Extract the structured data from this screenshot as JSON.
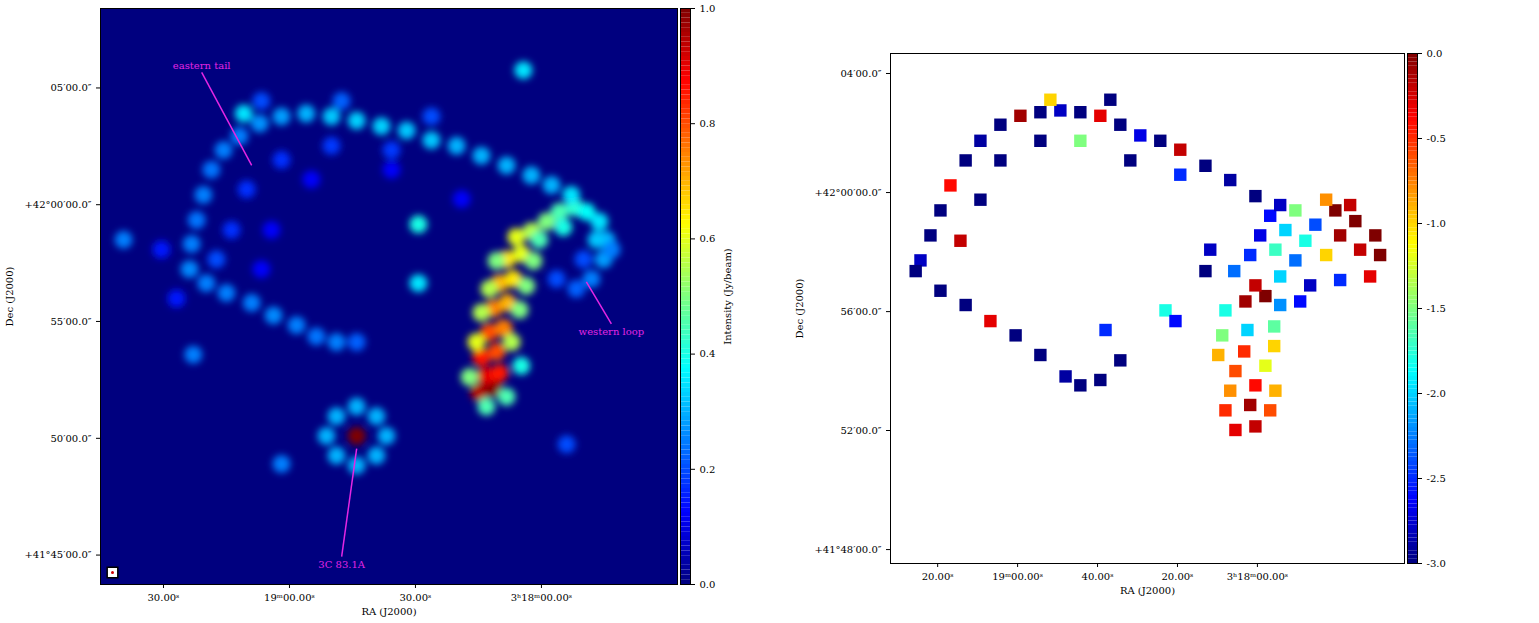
{
  "chart_data": [
    {
      "type": "heatmap",
      "xlabel": "RA (J2000)",
      "ylabel": "Dec (J2000)",
      "xlim": [
        11985,
        11847.6
      ],
      "ylim": [
        41.729,
        42.14
      ],
      "xticks": [
        {
          "value": 11970,
          "label": "30.00ˢ"
        },
        {
          "value": 11940,
          "label": "19ᵐ00.00ˢ"
        },
        {
          "value": 11910,
          "label": "30.00ˢ"
        },
        {
          "value": 11880,
          "label": "3ʰ18ᵐ00.00ˢ"
        }
      ],
      "yticks": [
        {
          "value": 41.75,
          "label": "+41°45′00.0″"
        },
        {
          "value": 41.8333,
          "label": "50′00.0″"
        },
        {
          "value": 41.9167,
          "label": "55′00.0″"
        },
        {
          "value": 42.0,
          "label": "+42°00′00.0″"
        },
        {
          "value": 42.0833,
          "label": "05′00.0″"
        }
      ],
      "colorbar": {
        "label": "Intensity (Jy/beam)",
        "lim": [
          0,
          1
        ],
        "ticks": [
          {
            "value": 0,
            "label": "0.0"
          },
          {
            "value": 0.2,
            "label": "0.2"
          },
          {
            "value": 0.4,
            "label": "0.4"
          },
          {
            "value": 0.6,
            "label": "0.6"
          },
          {
            "value": 0.8,
            "label": "0.8"
          },
          {
            "value": 1,
            "label": "1.0"
          }
        ]
      },
      "annotations": [
        {
          "text": "eastern tail",
          "x": 11949.0,
          "y": 42.028
        },
        {
          "text": "western loop",
          "x": 11869.3,
          "y": 41.945
        },
        {
          "text": "3C 83.1A",
          "x": 11924.0,
          "y": 41.826
        }
      ],
      "points": [
        [
          11894.8,
          41.866,
          0.95
        ],
        [
          11891.4,
          41.869,
          1.0
        ],
        [
          11893.1,
          41.878,
          0.9
        ],
        [
          11890.0,
          41.88,
          0.85
        ],
        [
          11894.3,
          41.891,
          0.85
        ],
        [
          11890.7,
          41.895,
          0.8
        ],
        [
          11892.4,
          41.909,
          0.8
        ],
        [
          11889.0,
          41.912,
          0.75
        ],
        [
          11895.5,
          41.902,
          0.6
        ],
        [
          11887.1,
          41.902,
          0.55
        ],
        [
          11891.4,
          41.926,
          0.75
        ],
        [
          11888.1,
          41.93,
          0.7
        ],
        [
          11894.3,
          41.923,
          0.55
        ],
        [
          11885.2,
          41.925,
          0.5
        ],
        [
          11890.0,
          41.944,
          0.7
        ],
        [
          11886.7,
          41.947,
          0.65
        ],
        [
          11892.4,
          41.94,
          0.55
        ],
        [
          11883.6,
          41.942,
          0.5
        ],
        [
          11888.3,
          41.961,
          0.65
        ],
        [
          11884.8,
          41.965,
          0.6
        ],
        [
          11890.7,
          41.96,
          0.5
        ],
        [
          11881.9,
          41.96,
          0.5
        ],
        [
          11886.0,
          41.977,
          0.6
        ],
        [
          11882.4,
          41.981,
          0.55
        ],
        [
          11878.8,
          41.988,
          0.5
        ],
        [
          11880.5,
          41.975,
          0.45
        ],
        [
          11875.7,
          41.995,
          0.45
        ],
        [
          11872.1,
          41.998,
          0.42
        ],
        [
          11874.8,
          41.984,
          0.4
        ],
        [
          11869.3,
          41.995,
          0.38
        ],
        [
          11866.2,
          41.988,
          0.35
        ],
        [
          11864.5,
          41.975,
          0.3
        ],
        [
          11866.9,
          41.975,
          0.32
        ],
        [
          11872.9,
          42.007,
          0.35
        ],
        [
          11865.2,
          41.961,
          0.28
        ],
        [
          11868.1,
          41.947,
          0.25
        ],
        [
          11871.7,
          41.94,
          0.22
        ],
        [
          11876.4,
          41.947,
          0.2
        ],
        [
          11863.3,
          41.968,
          0.25
        ],
        [
          11870.0,
          41.961,
          0.2
        ],
        [
          11884.8,
          41.885,
          0.4
        ],
        [
          11897.1,
          41.877,
          0.5
        ],
        [
          11893.1,
          41.856,
          0.45
        ],
        [
          11888.3,
          41.863,
          0.45
        ],
        [
          11877.6,
          42.014,
          0.3
        ],
        [
          11882.4,
          42.021,
          0.3
        ],
        [
          11888.3,
          42.028,
          0.3
        ],
        [
          11894.3,
          42.035,
          0.3
        ],
        [
          11900.2,
          42.042,
          0.3
        ],
        [
          11906.2,
          42.046,
          0.32
        ],
        [
          11912.1,
          42.053,
          0.32
        ],
        [
          11918.1,
          42.056,
          0.33
        ],
        [
          11924.0,
          42.06,
          0.33
        ],
        [
          11930.0,
          42.063,
          0.32
        ],
        [
          11936.0,
          42.065,
          0.3
        ],
        [
          11941.9,
          42.063,
          0.28
        ],
        [
          11947.1,
          42.058,
          0.27
        ],
        [
          11951.9,
          42.049,
          0.25
        ],
        [
          11955.7,
          42.039,
          0.25
        ],
        [
          11958.6,
          42.025,
          0.24
        ],
        [
          11960.5,
          42.007,
          0.25
        ],
        [
          11962.1,
          41.989,
          0.24
        ],
        [
          11963.3,
          41.972,
          0.25
        ],
        [
          11963.8,
          41.954,
          0.26
        ],
        [
          11927.6,
          42.074,
          0.22
        ],
        [
          11906.2,
          42.063,
          0.2
        ],
        [
          11946.7,
          42.074,
          0.2
        ],
        [
          11959.8,
          41.944,
          0.25
        ],
        [
          11955.0,
          41.937,
          0.25
        ],
        [
          11949.0,
          41.93,
          0.25
        ],
        [
          11943.8,
          41.921,
          0.26
        ],
        [
          11938.3,
          41.914,
          0.25
        ],
        [
          11933.6,
          41.906,
          0.24
        ],
        [
          11928.8,
          41.902,
          0.25
        ],
        [
          11924.0,
          41.902,
          0.22
        ],
        [
          11915.7,
          42.039,
          0.18
        ],
        [
          11930.0,
          42.042,
          0.18
        ],
        [
          11941.9,
          42.032,
          0.17
        ],
        [
          11950.2,
          42.011,
          0.17
        ],
        [
          11953.8,
          41.982,
          0.17
        ],
        [
          11957.4,
          41.961,
          0.2
        ],
        [
          11934.8,
          42.018,
          0.12
        ],
        [
          11944.3,
          41.982,
          0.12
        ],
        [
          11899.0,
          42.004,
          0.12
        ],
        [
          11915.7,
          42.025,
          0.12
        ],
        [
          11970.5,
          41.968,
          0.15
        ],
        [
          11966.9,
          41.933,
          0.15
        ],
        [
          11946.7,
          41.954,
          0.12
        ],
        [
          11909.3,
          41.986,
          0.4
        ],
        [
          11909.3,
          41.944,
          0.35
        ],
        [
          11950.9,
          42.065,
          0.35
        ],
        [
          11884.3,
          42.096,
          0.35
        ],
        [
          11979.5,
          41.975,
          0.25
        ],
        [
          11962.9,
          41.893,
          0.25
        ],
        [
          11941.9,
          41.815,
          0.25
        ],
        [
          11874.0,
          41.829,
          0.2
        ],
        [
          11928.8,
          41.849,
          0.3
        ],
        [
          11919.3,
          41.849,
          0.3
        ],
        [
          11928.8,
          41.821,
          0.3
        ],
        [
          11919.3,
          41.821,
          0.3
        ],
        [
          11924.0,
          41.856,
          0.3
        ],
        [
          11924.0,
          41.814,
          0.3
        ],
        [
          11931.2,
          41.835,
          0.3
        ],
        [
          11916.9,
          41.835,
          0.3
        ],
        [
          11924.0,
          41.835,
          1.0
        ]
      ]
    },
    {
      "type": "heatmap",
      "xlabel": "RA (J2000)",
      "ylabel": "Dec (J2000)",
      "xlim": [
        11971.8,
        11843.2
      ],
      "ylim": [
        41.7922,
        42.0779
      ],
      "xticks": [
        {
          "value": 11960,
          "label": "20.00ˢ"
        },
        {
          "value": 11940,
          "label": "19ᵐ00.00ˢ"
        },
        {
          "value": 11920,
          "label": "40.00ˢ"
        },
        {
          "value": 11900,
          "label": "20.00ˢ"
        },
        {
          "value": 11880,
          "label": "3ʰ18ᵐ00.00ˢ"
        }
      ],
      "yticks": [
        {
          "value": 41.8,
          "label": "+41°48′00.0″"
        },
        {
          "value": 41.8667,
          "label": "52′00.0″"
        },
        {
          "value": 41.9333,
          "label": "56′00.0″"
        },
        {
          "value": 42.0,
          "label": "+42°00′00.0″"
        },
        {
          "value": 42.0667,
          "label": "04′00.0″"
        }
      ],
      "colorbar": {
        "lim": [
          -3,
          0
        ],
        "ticks": [
          {
            "value": -3,
            "label": "-3.0"
          },
          {
            "value": -2.5,
            "label": "-2.5"
          },
          {
            "value": -2,
            "label": "-2.0"
          },
          {
            "value": -1.5,
            "label": "-1.5"
          },
          {
            "value": -1,
            "label": "-1.0"
          },
          {
            "value": -0.5,
            "label": "-0.5"
          },
          {
            "value": 0,
            "label": "0.0"
          }
        ]
      },
      "points": [
        [
          11885.5,
          41.867,
          -0.3
        ],
        [
          11880.5,
          41.869,
          -0.2
        ],
        [
          11888.0,
          41.878,
          -0.5
        ],
        [
          11881.8,
          41.881,
          -0.1
        ],
        [
          11876.8,
          41.878,
          -0.6
        ],
        [
          11886.8,
          41.889,
          -0.8
        ],
        [
          11880.5,
          41.892,
          -0.4
        ],
        [
          11875.5,
          41.889,
          -0.9
        ],
        [
          11885.5,
          41.9,
          -0.6
        ],
        [
          11878.0,
          41.903,
          -1.2
        ],
        [
          11889.8,
          41.909,
          -0.9
        ],
        [
          11883.3,
          41.911,
          -0.5
        ],
        [
          11875.8,
          41.914,
          -1.0
        ],
        [
          11888.8,
          41.92,
          -1.5
        ],
        [
          11882.5,
          41.923,
          -2.0
        ],
        [
          11875.8,
          41.925,
          -1.6
        ],
        [
          11883.0,
          41.939,
          -0.1
        ],
        [
          11878.0,
          41.942,
          0
        ],
        [
          11880.5,
          41.948,
          -0.2
        ],
        [
          11888.0,
          41.934,
          -1.8
        ],
        [
          11874.3,
          41.937,
          -2.2
        ],
        [
          11885.8,
          41.956,
          -2.3
        ],
        [
          11874.3,
          41.953,
          -2.0
        ],
        [
          11881.8,
          41.965,
          -2.5
        ],
        [
          11875.5,
          41.968,
          -1.7
        ],
        [
          11870.5,
          41.962,
          -2.3
        ],
        [
          11879.3,
          41.976,
          -2.7
        ],
        [
          11873.0,
          41.979,
          -2.0
        ],
        [
          11868.0,
          41.973,
          -1.8
        ],
        [
          11876.8,
          41.987,
          -2.6
        ],
        [
          11870.5,
          41.99,
          -1.5
        ],
        [
          11865.5,
          41.982,
          -2.4
        ],
        [
          11860.5,
          41.99,
          0
        ],
        [
          11855.5,
          41.984,
          0
        ],
        [
          11850.5,
          41.976,
          0
        ],
        [
          11854.3,
          41.968,
          -0.2
        ],
        [
          11849.3,
          41.965,
          0
        ],
        [
          11859.3,
          41.976,
          -0.1
        ],
        [
          11862.8,
          41.965,
          -1.0
        ],
        [
          11851.8,
          41.953,
          -0.3
        ],
        [
          11856.8,
          41.993,
          -0.2
        ],
        [
          11862.8,
          41.996,
          -0.8
        ],
        [
          11859.3,
          41.951,
          -2.5
        ],
        [
          11866.8,
          41.948,
          -2.8
        ],
        [
          11869.3,
          41.939,
          -2.6
        ],
        [
          11874.3,
          41.993,
          -2.8
        ],
        [
          11880.5,
          41.998,
          -3
        ],
        [
          11886.8,
          42.007,
          -2.9
        ],
        [
          11893.0,
          42.015,
          -3
        ],
        [
          11899.3,
          42.024,
          -0.2
        ],
        [
          11904.3,
          42.029,
          -3
        ],
        [
          11909.3,
          42.032,
          -2.7
        ],
        [
          11914.3,
          42.038,
          -3
        ],
        [
          11919.3,
          42.043,
          -0.3
        ],
        [
          11924.3,
          42.045,
          -3
        ],
        [
          11929.3,
          42.046,
          -2.8
        ],
        [
          11934.3,
          42.045,
          -3
        ],
        [
          11939.3,
          42.043,
          -0.1
        ],
        [
          11944.3,
          42.038,
          -3
        ],
        [
          11949.3,
          42.029,
          -2.9
        ],
        [
          11953.0,
          42.018,
          -3
        ],
        [
          11956.8,
          42.004,
          -0.4
        ],
        [
          11959.3,
          41.99,
          -3
        ],
        [
          11961.8,
          41.976,
          -3
        ],
        [
          11964.3,
          41.962,
          -2.8
        ],
        [
          11965.5,
          41.956,
          -3
        ],
        [
          11911.8,
          42.018,
          -3
        ],
        [
          11924.3,
          42.029,
          -1.5
        ],
        [
          11934.3,
          42.029,
          -3
        ],
        [
          11944.3,
          42.018,
          -3
        ],
        [
          11899.3,
          42.01,
          -2.5
        ],
        [
          11949.3,
          41.996,
          -3
        ],
        [
          11954.3,
          41.973,
          -0.2
        ],
        [
          11916.8,
          42.052,
          -3
        ],
        [
          11931.8,
          42.052,
          -1.0
        ],
        [
          11959.3,
          41.945,
          -3
        ],
        [
          11953.0,
          41.937,
          -3
        ],
        [
          11946.8,
          41.928,
          -0.3
        ],
        [
          11940.5,
          41.92,
          -3
        ],
        [
          11934.3,
          41.909,
          -3
        ],
        [
          11928.0,
          41.897,
          -2.9
        ],
        [
          11924.3,
          41.892,
          -3
        ],
        [
          11919.3,
          41.895,
          -3
        ],
        [
          11914.3,
          41.906,
          -3
        ],
        [
          11918.0,
          41.923,
          -2.5
        ],
        [
          11903.0,
          41.934,
          -1.8
        ],
        [
          11900.5,
          41.928,
          -2.6
        ],
        [
          11893.0,
          41.956,
          -3
        ],
        [
          11891.8,
          41.968,
          -2.8
        ]
      ]
    }
  ]
}
